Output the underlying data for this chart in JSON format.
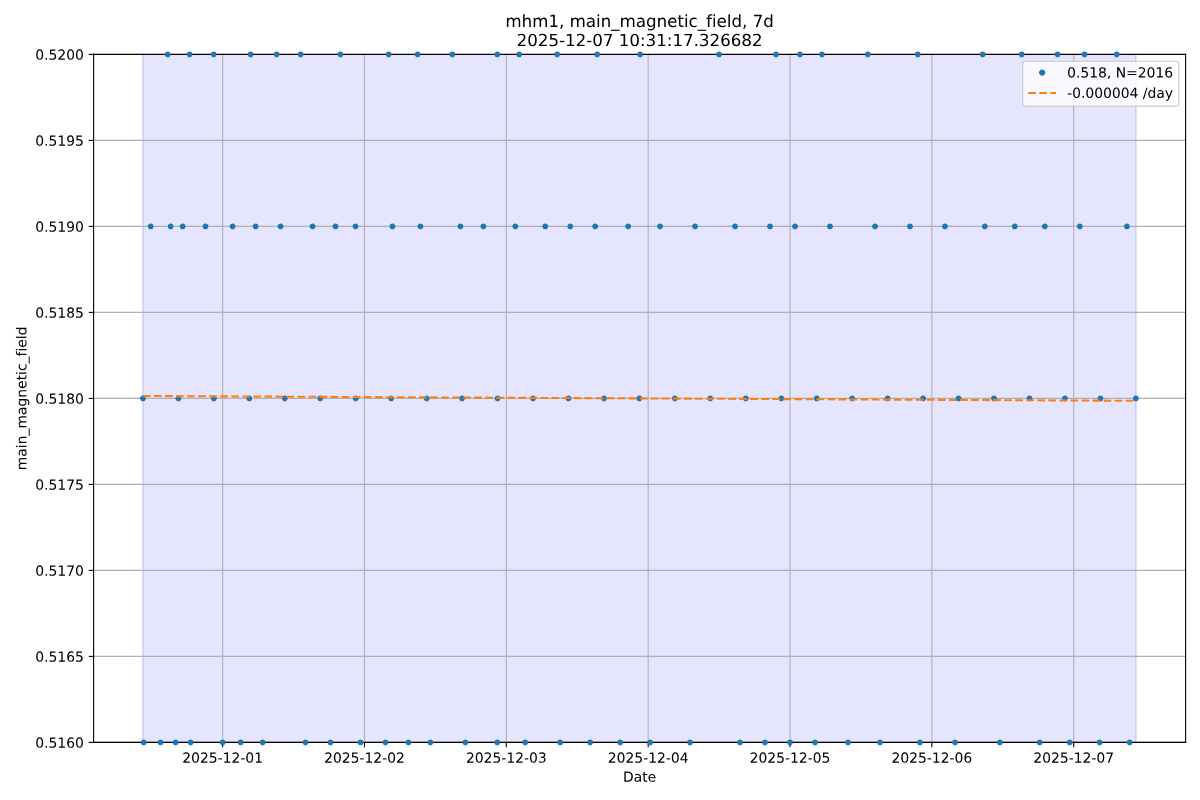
{
  "chart_data": {
    "type": "scatter",
    "title": "mhm1, main_magnetic_field, 7d",
    "subtitle": "2025-12-07 10:31:17.326682",
    "xlabel": "Date",
    "ylabel": "main_magnetic_field",
    "xlim": [
      "2025-11-30T02:10",
      "2025-12-07T18:56"
    ],
    "xticks": [
      "2025-12-01",
      "2025-12-02",
      "2025-12-03",
      "2025-12-04",
      "2025-12-05",
      "2025-12-06",
      "2025-12-07"
    ],
    "ylim": [
      0.516,
      0.52
    ],
    "yticks": [
      {
        "value": 0.516,
        "label": "0.5160"
      },
      {
        "value": 0.5165,
        "label": "0.5165"
      },
      {
        "value": 0.517,
        "label": "0.5170"
      },
      {
        "value": 0.5175,
        "label": "0.5175"
      },
      {
        "value": 0.518,
        "label": "0.5180"
      },
      {
        "value": 0.5185,
        "label": "0.5185"
      },
      {
        "value": 0.519,
        "label": "0.5190"
      },
      {
        "value": 0.5195,
        "label": "0.5195"
      },
      {
        "value": 0.52,
        "label": "0.5200"
      }
    ],
    "grid": true,
    "legend": "top right",
    "bands": [
      {
        "axis": "x",
        "from": "2025-11-30T10:31",
        "to": "2025-12-07T10:31",
        "color": "#e5e5ff"
      }
    ],
    "series": [
      {
        "name": "0.518, N=2016",
        "marker": "circle",
        "color": "#1f77b4",
        "x": [
          "2025-11-30T10:31",
          "2025-11-30T16:31",
          "2025-11-30T22:31",
          "2025-12-01T04:31",
          "2025-12-01T10:31",
          "2025-12-01T16:31",
          "2025-12-01T22:31",
          "2025-12-02T04:31",
          "2025-12-02T10:31",
          "2025-12-02T16:31",
          "2025-12-02T22:31",
          "2025-12-03T04:31",
          "2025-12-03T10:31",
          "2025-12-03T16:31",
          "2025-12-03T22:31",
          "2025-12-04T04:31",
          "2025-12-04T10:31",
          "2025-12-04T16:31",
          "2025-12-04T22:31",
          "2025-12-05T04:31",
          "2025-12-05T10:31",
          "2025-12-05T16:31",
          "2025-12-05T22:31",
          "2025-12-06T04:31",
          "2025-12-06T10:31",
          "2025-12-06T16:31",
          "2025-12-06T22:31",
          "2025-12-07T04:31",
          "2025-12-07T10:31",
          "2025-11-30T11:50",
          "2025-11-30T15:12",
          "2025-11-30T17:14",
          "2025-11-30T21:06",
          "2025-12-01T01:41",
          "2025-12-01T05:35",
          "2025-12-01T09:48",
          "2025-12-01T15:13",
          "2025-12-01T19:06",
          "2025-12-01T22:29",
          "2025-12-02T04:44",
          "2025-12-02T09:28",
          "2025-12-02T16:14",
          "2025-12-02T20:07",
          "2025-12-03T01:31",
          "2025-12-03T06:35",
          "2025-12-03T10:49",
          "2025-12-03T15:02",
          "2025-12-03T20:37",
          "2025-12-04T02:01",
          "2025-12-04T07:56",
          "2025-12-04T14:42",
          "2025-12-04T20:37",
          "2025-12-05T00:51",
          "2025-12-05T06:46",
          "2025-12-05T14:23",
          "2025-12-05T20:18",
          "2025-12-06T02:13",
          "2025-12-06T08:58",
          "2025-12-06T14:02",
          "2025-12-06T19:07",
          "2025-12-07T01:02",
          "2025-12-07T09:00",
          "2025-11-30T14:42",
          "2025-11-30T18:25",
          "2025-11-30T22:29",
          "2025-12-01T04:44",
          "2025-12-01T09:08",
          "2025-12-01T13:11",
          "2025-12-01T19:56",
          "2025-12-02T04:05",
          "2025-12-02T09:00",
          "2025-12-02T14:52",
          "2025-12-02T22:28",
          "2025-12-03T02:11",
          "2025-12-03T08:36",
          "2025-12-03T15:22",
          "2025-12-03T22:38",
          "2025-12-04T12:00",
          "2025-12-04T21:38",
          "2025-12-05T01:41",
          "2025-12-05T05:24",
          "2025-12-05T13:10",
          "2025-12-05T21:37",
          "2025-12-06T08:36",
          "2025-12-06T15:12",
          "2025-12-06T21:17",
          "2025-12-07T01:50",
          "2025-12-07T07:17",
          "2025-11-30T10:39",
          "2025-11-30T13:30",
          "2025-11-30T16:03",
          "2025-11-30T18:35",
          "2025-12-01T00:00",
          "2025-12-01T03:03",
          "2025-12-01T06:46",
          "2025-12-01T14:01",
          "2025-12-01T18:15",
          "2025-12-01T23:19",
          "2025-12-02T03:33",
          "2025-12-02T07:26",
          "2025-12-02T11:09",
          "2025-12-02T17:04",
          "2025-12-02T22:28",
          "2025-12-03T03:12",
          "2025-12-03T09:07",
          "2025-12-03T14:11",
          "2025-12-03T19:16",
          "2025-12-04T00:20",
          "2025-12-04T07:05",
          "2025-12-04T15:32",
          "2025-12-04T19:46",
          "2025-12-05T00:00",
          "2025-12-05T04:14",
          "2025-12-05T09:49",
          "2025-12-05T15:14",
          "2025-12-05T21:59",
          "2025-12-06T03:55",
          "2025-12-06T11:30",
          "2025-12-06T18:15",
          "2025-12-06T23:19",
          "2025-12-07T04:23",
          "2025-12-07T09:28"
        ],
        "values": [
          0.518,
          0.518,
          0.518,
          0.518,
          0.518,
          0.518,
          0.518,
          0.518,
          0.518,
          0.518,
          0.518,
          0.518,
          0.518,
          0.518,
          0.518,
          0.518,
          0.518,
          0.518,
          0.518,
          0.518,
          0.518,
          0.518,
          0.518,
          0.518,
          0.518,
          0.518,
          0.518,
          0.518,
          0.518,
          0.519,
          0.519,
          0.519,
          0.519,
          0.519,
          0.519,
          0.519,
          0.519,
          0.519,
          0.519,
          0.519,
          0.519,
          0.519,
          0.519,
          0.519,
          0.519,
          0.519,
          0.519,
          0.519,
          0.519,
          0.519,
          0.519,
          0.519,
          0.519,
          0.519,
          0.519,
          0.519,
          0.519,
          0.519,
          0.519,
          0.519,
          0.519,
          0.519,
          0.52,
          0.52,
          0.52,
          0.52,
          0.52,
          0.52,
          0.52,
          0.52,
          0.52,
          0.52,
          0.52,
          0.52,
          0.52,
          0.52,
          0.52,
          0.52,
          0.52,
          0.52,
          0.52,
          0.52,
          0.52,
          0.52,
          0.52,
          0.52,
          0.52,
          0.52,
          0.516,
          0.516,
          0.516,
          0.516,
          0.516,
          0.516,
          0.516,
          0.516,
          0.516,
          0.516,
          0.516,
          0.516,
          0.516,
          0.516,
          0.516,
          0.516,
          0.516,
          0.516,
          0.516,
          0.516,
          0.516,
          0.516,
          0.516,
          0.516,
          0.516,
          0.516,
          0.516,
          0.516,
          0.516,
          0.516,
          0.516,
          0.516,
          0.516,
          0.516
        ]
      },
      {
        "name": "-0.000004 /day",
        "type": "line",
        "line_style": "dashed",
        "color": "#ff7f0e",
        "x": [
          "2025-11-30T10:31",
          "2025-12-07T10:31"
        ],
        "values": [
          0.518014,
          0.517986
        ]
      }
    ]
  }
}
